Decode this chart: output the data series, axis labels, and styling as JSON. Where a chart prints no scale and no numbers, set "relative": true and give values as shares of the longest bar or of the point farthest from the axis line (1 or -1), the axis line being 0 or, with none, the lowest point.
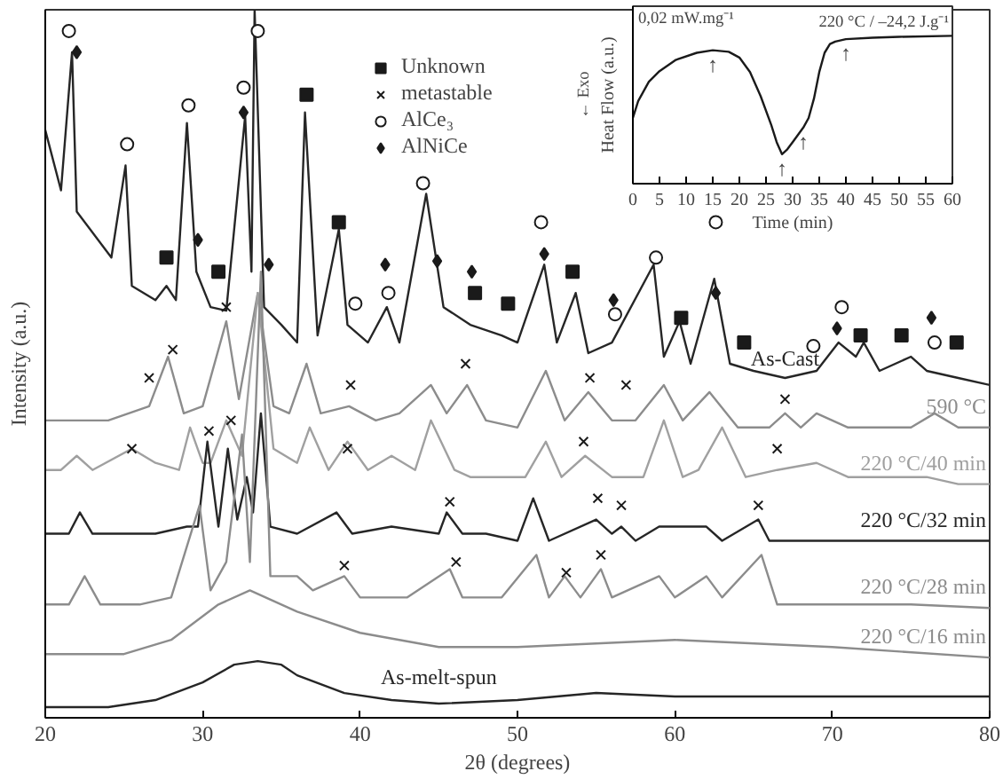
{
  "chart_data": [
    {
      "type": "line",
      "xlabel": "2θ (degrees)",
      "ylabel": "Intensity (a.u.)",
      "relative": true,
      "xlim": [
        20,
        80
      ],
      "xticks": [
        20,
        30,
        40,
        50,
        60,
        70,
        80
      ],
      "legend": "top",
      "grid": false,
      "series": [
        {
          "name": "As-Cast",
          "color": "#262626",
          "x": [
            20,
            21,
            21.7,
            22,
            24.2,
            25.1,
            25.5,
            27,
            27.7,
            28.3,
            29,
            29.6,
            30.5,
            31.5,
            32.7,
            33.1,
            33.3,
            33.9,
            35,
            36,
            36.5,
            37.3,
            38.65,
            39.2,
            40.5,
            41.7,
            42.5,
            44.2,
            45.3,
            47,
            49,
            50,
            51.7,
            52.5,
            53.7,
            54.5,
            56,
            58.65,
            59.3,
            60.3,
            61,
            62.5,
            63.5,
            65,
            67,
            69,
            70.4,
            71.5,
            72,
            73,
            75,
            76,
            78,
            80
          ],
          "values": [
            0.83,
            0.745,
            0.94,
            0.715,
            0.65,
            0.78,
            0.61,
            0.59,
            0.61,
            0.59,
            0.84,
            0.63,
            0.58,
            0.575,
            0.85,
            0.63,
            1.0,
            0.58,
            0.555,
            0.53,
            0.855,
            0.54,
            0.69,
            0.555,
            0.53,
            0.58,
            0.53,
            0.74,
            0.58,
            0.555,
            0.54,
            0.53,
            0.64,
            0.53,
            0.6,
            0.515,
            0.53,
            0.64,
            0.51,
            0.56,
            0.5,
            0.62,
            0.5,
            0.49,
            0.48,
            0.49,
            0.53,
            0.51,
            0.53,
            0.49,
            0.51,
            0.49,
            0.48,
            0.47
          ]
        },
        {
          "name": "590 °C",
          "color": "#8c8c8c",
          "x": [
            20,
            24,
            26.6,
            27.8,
            28.8,
            30,
            31.5,
            32.3,
            33.5,
            34.5,
            35.5,
            36.6,
            37.5,
            39.3,
            41,
            42.5,
            44.5,
            45.5,
            46.8,
            48,
            50,
            51.8,
            53,
            54.5,
            56,
            57.5,
            59.3,
            60.5,
            62.2,
            64,
            66,
            67,
            68,
            69,
            71,
            73,
            75,
            76.5,
            78,
            80
          ],
          "values": [
            0.42,
            0.42,
            0.44,
            0.51,
            0.43,
            0.44,
            0.56,
            0.45,
            0.6,
            0.44,
            0.43,
            0.5,
            0.43,
            0.44,
            0.42,
            0.43,
            0.47,
            0.43,
            0.47,
            0.42,
            0.41,
            0.49,
            0.42,
            0.46,
            0.42,
            0.42,
            0.47,
            0.42,
            0.46,
            0.41,
            0.41,
            0.43,
            0.41,
            0.43,
            0.41,
            0.41,
            0.41,
            0.43,
            0.41,
            0.41
          ]
        },
        {
          "name": "220 °C/40 min",
          "color": "#a0a0a0",
          "x": [
            20,
            21,
            22,
            23,
            25.5,
            27,
            28.5,
            29.2,
            30,
            30.5,
            31.5,
            32.5,
            33.5,
            34.5,
            36,
            36.8,
            38,
            39.2,
            40.5,
            42,
            43.5,
            44.5,
            46,
            47,
            49,
            50.5,
            51.8,
            52.8,
            54.3,
            56,
            58,
            59.3,
            60.5,
            61.5,
            63,
            64.5,
            66.5,
            69,
            71,
            73,
            76,
            78,
            80
          ],
          "values": [
            0.35,
            0.35,
            0.37,
            0.35,
            0.38,
            0.36,
            0.35,
            0.41,
            0.36,
            0.36,
            0.42,
            0.37,
            0.6,
            0.38,
            0.36,
            0.41,
            0.35,
            0.39,
            0.35,
            0.37,
            0.35,
            0.42,
            0.35,
            0.34,
            0.34,
            0.34,
            0.39,
            0.34,
            0.37,
            0.34,
            0.34,
            0.42,
            0.34,
            0.35,
            0.41,
            0.34,
            0.35,
            0.36,
            0.34,
            0.34,
            0.34,
            0.33,
            0.33
          ]
        },
        {
          "name": "220 °C/32 min",
          "color": "#262626",
          "x": [
            20,
            21.5,
            22.2,
            23,
            25,
            27,
            29,
            29.7,
            30.3,
            31,
            31.6,
            32.2,
            32.8,
            33.2,
            33.7,
            34.3,
            36,
            38.5,
            39.5,
            42,
            45,
            45.5,
            46.5,
            48,
            50,
            51,
            52,
            55,
            56,
            56.6,
            57.5,
            59,
            62,
            63,
            65.3,
            66,
            70,
            75,
            80
          ],
          "values": [
            0.26,
            0.26,
            0.29,
            0.26,
            0.26,
            0.26,
            0.27,
            0.27,
            0.39,
            0.27,
            0.38,
            0.28,
            0.34,
            0.29,
            0.43,
            0.27,
            0.26,
            0.29,
            0.26,
            0.27,
            0.26,
            0.29,
            0.26,
            0.26,
            0.25,
            0.31,
            0.25,
            0.28,
            0.26,
            0.27,
            0.25,
            0.27,
            0.27,
            0.25,
            0.28,
            0.25,
            0.25,
            0.25,
            0.25
          ]
        },
        {
          "name": "220 °C/28 min",
          "color": "#8c8c8c",
          "x": [
            20,
            21.5,
            22.5,
            23.5,
            26,
            28,
            29.8,
            30.5,
            31.5,
            32.5,
            33,
            33.7,
            34.3,
            36,
            37,
            39,
            40,
            43,
            45.7,
            46.5,
            49,
            51.2,
            52,
            53,
            54,
            55.3,
            56,
            59,
            60,
            62,
            63,
            65.5,
            66.5,
            70,
            75,
            80
          ],
          "values": [
            0.16,
            0.16,
            0.2,
            0.16,
            0.16,
            0.17,
            0.3,
            0.18,
            0.22,
            0.4,
            0.22,
            0.63,
            0.2,
            0.2,
            0.18,
            0.2,
            0.17,
            0.17,
            0.21,
            0.17,
            0.17,
            0.23,
            0.17,
            0.2,
            0.17,
            0.21,
            0.17,
            0.2,
            0.17,
            0.2,
            0.17,
            0.23,
            0.16,
            0.16,
            0.16,
            0.155
          ]
        },
        {
          "name": "220 °C/16 min",
          "color": "#8c8c8c",
          "x": [
            20,
            25,
            28,
            31,
            33,
            36,
            40,
            45,
            50,
            60,
            70,
            80
          ],
          "values": [
            0.09,
            0.09,
            0.11,
            0.16,
            0.18,
            0.15,
            0.12,
            0.1,
            0.1,
            0.11,
            0.1,
            0.085
          ]
        },
        {
          "name": "As-melt-spun",
          "color": "#262626",
          "x": [
            20,
            24,
            27,
            30,
            32,
            33.5,
            35,
            36,
            39,
            42,
            45,
            50,
            55,
            60,
            70,
            80
          ],
          "values": [
            0.015,
            0.015,
            0.025,
            0.05,
            0.075,
            0.08,
            0.075,
            0.06,
            0.035,
            0.025,
            0.02,
            0.025,
            0.035,
            0.03,
            0.03,
            0.03
          ]
        },
        {
          "type": "scatter",
          "marker": "square",
          "name": "Unknown",
          "color": "#1a1a1a",
          "x": [
            27.7,
            31.0,
            36.6,
            38.65,
            47.3,
            49.4,
            53.5,
            60.4,
            64.4,
            71.8,
            74.4,
            77.9
          ],
          "values": [
            0.65,
            0.63,
            0.88,
            0.7,
            0.6,
            0.585,
            0.63,
            0.565,
            0.53,
            0.54,
            0.54,
            0.53
          ]
        },
        {
          "type": "scatter",
          "marker": "cross",
          "name": "metastable",
          "color": "#1a1a1a",
          "x": [
            26.6,
            28.1,
            31.5,
            39.4,
            46.7,
            54.6,
            56.9,
            67.0,
            25.5,
            30.4,
            31.8,
            39.2,
            54.2,
            66.5,
            45.7,
            55.1,
            56.6,
            65.3,
            39.0,
            46.1,
            53.1,
            55.3
          ],
          "values": [
            0.48,
            0.52,
            0.58,
            0.47,
            0.5,
            0.48,
            0.47,
            0.45,
            0.38,
            0.405,
            0.42,
            0.38,
            0.39,
            0.38,
            0.305,
            0.31,
            0.3,
            0.3,
            0.215,
            0.22,
            0.205,
            0.23
          ]
        },
        {
          "type": "scatter",
          "marker": "circle",
          "name": "AlCe₃",
          "color": "#1a1a1a",
          "x": [
            21.5,
            25.2,
            29.1,
            32.6,
            33.5,
            39.7,
            41.8,
            44.0,
            51.5,
            56.2,
            58.8,
            62.6,
            68.8,
            70.6,
            76.5
          ],
          "values": [
            0.97,
            0.81,
            0.865,
            0.89,
            0.97,
            0.585,
            0.6,
            0.755,
            0.7,
            0.57,
            0.65,
            0.7,
            0.525,
            0.58,
            0.53
          ]
        },
        {
          "type": "scatter",
          "marker": "diamond",
          "name": "AlNiCe",
          "color": "#1a1a1a",
          "x": [
            22.0,
            29.7,
            32.6,
            34.2,
            41.6,
            44.9,
            47.1,
            51.7,
            56.1,
            62.6,
            70.3,
            76.3
          ],
          "values": [
            0.94,
            0.675,
            0.855,
            0.64,
            0.64,
            0.645,
            0.63,
            0.655,
            0.59,
            0.6,
            0.55,
            0.565
          ]
        }
      ]
    },
    {
      "type": "line",
      "xlabel": "Time (min)",
      "ylabel": "Heat Flow (a.u.)",
      "relative": true,
      "xlim": [
        0,
        60
      ],
      "xticks": [
        0,
        5,
        10,
        15,
        20,
        25,
        30,
        35,
        40,
        45,
        50,
        55,
        60
      ],
      "grid": false,
      "series": [
        {
          "color": "#1a1a1a",
          "x": [
            0,
            1,
            3,
            5,
            8,
            12,
            15,
            18,
            20,
            22,
            24,
            26,
            27,
            28,
            29,
            30,
            32,
            33,
            34,
            35,
            36,
            37,
            38,
            40,
            45,
            50,
            60
          ],
          "values": [
            0.444,
            0.559,
            0.689,
            0.761,
            0.836,
            0.885,
            0.902,
            0.892,
            0.853,
            0.755,
            0.591,
            0.395,
            0.281,
            0.199,
            0.232,
            0.281,
            0.379,
            0.444,
            0.575,
            0.755,
            0.885,
            0.944,
            0.961,
            0.977,
            0.987,
            0.993,
            1.0
          ]
        }
      ],
      "annotations": [
        "0,02 mW.mg⁻¹",
        "220 °C / –24,2 J.g⁻¹",
        "← Exo",
        {
          "text": "↑",
          "x": 15,
          "y": 0.902
        },
        {
          "text": "↑",
          "x": 28,
          "y": 0.199
        },
        {
          "text": "↑",
          "x": 32,
          "y": 0.379
        },
        {
          "text": "↑",
          "x": 40,
          "y": 0.977
        }
      ]
    }
  ]
}
